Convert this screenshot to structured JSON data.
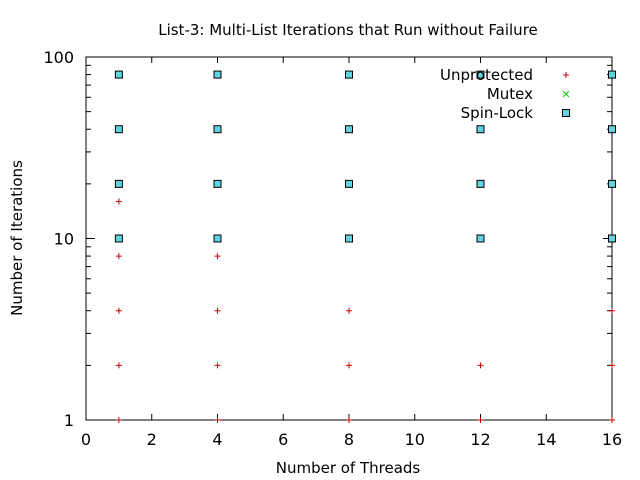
{
  "chart_data": {
    "type": "scatter",
    "title": "List-3: Multi-List Iterations that Run without Failure",
    "xlabel": "Number of Threads",
    "ylabel": "Number of Iterations",
    "xlim": [
      0,
      16
    ],
    "ylim": [
      1,
      100
    ],
    "yscale": "log",
    "grid": false,
    "legend_position": "top-right",
    "xticks": [
      "0",
      "2",
      "4",
      "6",
      "8",
      "10",
      "12",
      "14",
      "16"
    ],
    "yticks": [
      "1",
      "10",
      "100"
    ],
    "series": [
      {
        "name": "Unprotected",
        "marker": "plus",
        "color": "#cc0000",
        "points": [
          [
            1,
            1
          ],
          [
            1,
            2
          ],
          [
            1,
            4
          ],
          [
            1,
            8
          ],
          [
            1,
            16
          ],
          [
            4,
            1
          ],
          [
            4,
            2
          ],
          [
            4,
            4
          ],
          [
            4,
            8
          ],
          [
            8,
            1
          ],
          [
            8,
            2
          ],
          [
            8,
            4
          ],
          [
            12,
            1
          ],
          [
            12,
            2
          ],
          [
            16,
            1
          ],
          [
            16,
            2
          ],
          [
            16,
            4
          ],
          [
            16,
            10
          ]
        ]
      },
      {
        "name": "Mutex",
        "marker": "cross",
        "color": "#00cc00",
        "points": [
          [
            1,
            10
          ],
          [
            1,
            20
          ],
          [
            1,
            40
          ],
          [
            1,
            80
          ],
          [
            4,
            10
          ],
          [
            4,
            20
          ],
          [
            4,
            40
          ],
          [
            4,
            80
          ],
          [
            8,
            10
          ],
          [
            8,
            20
          ],
          [
            8,
            40
          ],
          [
            8,
            80
          ],
          [
            12,
            10
          ],
          [
            12,
            20
          ],
          [
            12,
            40
          ],
          [
            12,
            80
          ],
          [
            16,
            10
          ],
          [
            16,
            20
          ],
          [
            16,
            40
          ],
          [
            16,
            80
          ]
        ]
      },
      {
        "name": "Spin-Lock",
        "marker": "square",
        "color": "#0033cc",
        "points": [
          [
            1,
            10
          ],
          [
            1,
            20
          ],
          [
            1,
            40
          ],
          [
            1,
            80
          ],
          [
            4,
            10
          ],
          [
            4,
            20
          ],
          [
            4,
            40
          ],
          [
            4,
            80
          ],
          [
            8,
            10
          ],
          [
            8,
            20
          ],
          [
            8,
            40
          ],
          [
            8,
            80
          ],
          [
            12,
            10
          ],
          [
            12,
            20
          ],
          [
            12,
            40
          ],
          [
            12,
            80
          ],
          [
            16,
            10
          ],
          [
            16,
            20
          ],
          [
            16,
            40
          ],
          [
            16,
            80
          ]
        ]
      }
    ]
  }
}
